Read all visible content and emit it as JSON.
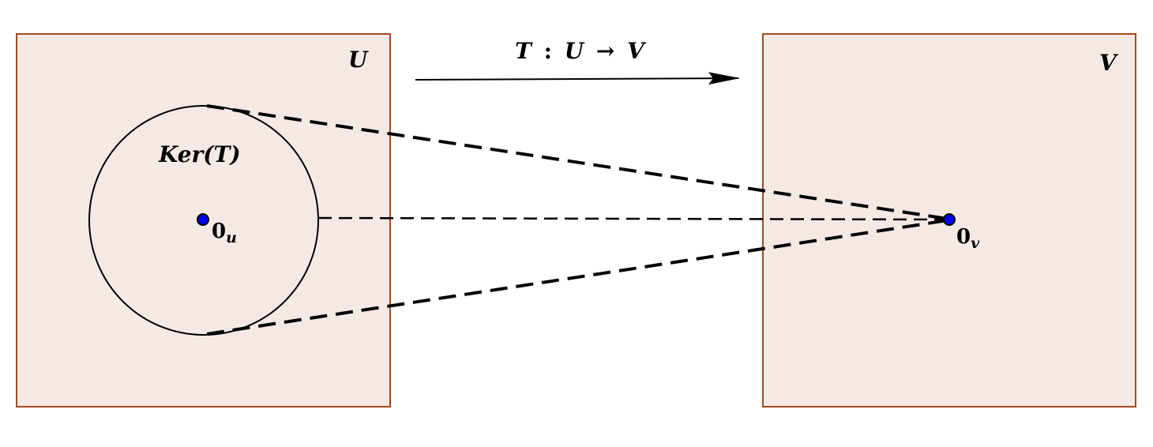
{
  "diagram": {
    "domain_space": {
      "label": "U"
    },
    "codomain_space": {
      "label": "V"
    },
    "mapping": {
      "label_lhs": "T",
      "label_colon": ":",
      "label_from": "U",
      "label_arrow": "→",
      "label_to": "V"
    },
    "kernel": {
      "label": "Ker(T)"
    },
    "zero_u": {
      "base": "0",
      "sub": "u"
    },
    "zero_v": {
      "base": "0",
      "sub": "v"
    },
    "colors": {
      "space_fill": "#f5e9e5",
      "space_border": "#a24a1e",
      "point_fill": "#0000ee",
      "line": "#000000"
    }
  }
}
